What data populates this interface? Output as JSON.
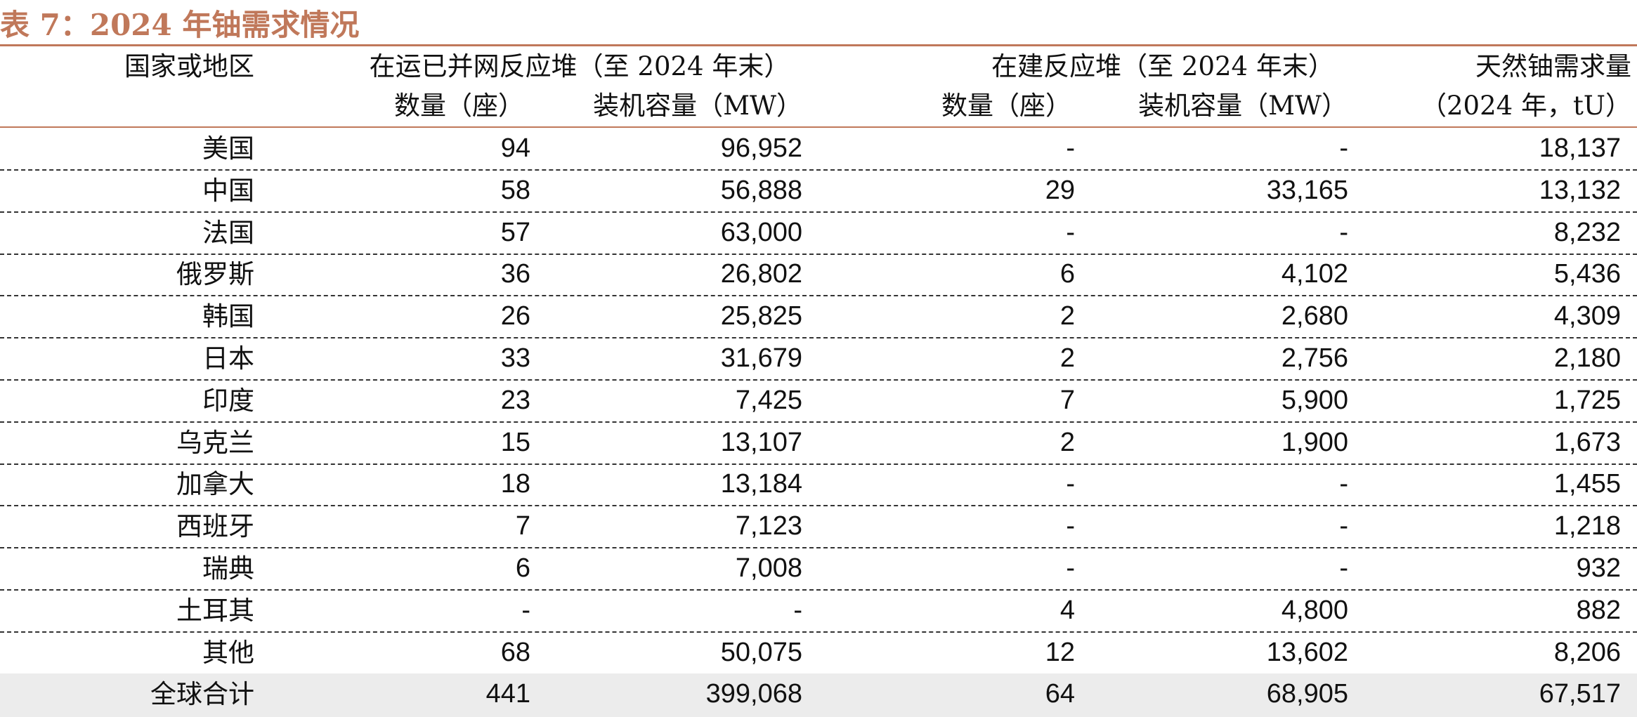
{
  "title": "表 7：2024 年铀需求情况",
  "header": {
    "country": "国家或地区",
    "operating_group": "在运已并网反应堆（至 2024 年末）",
    "construction_group": "在建反应堆（至 2024 年末）",
    "demand_line1": "天然铀需求量",
    "demand_line2": "（2024 年，tU）",
    "count_label": "数量（座）",
    "capacity_label": "装机容量（MW）"
  },
  "rows": [
    {
      "country": "美国",
      "op_count": "94",
      "op_cap": "96,952",
      "cn_count": "-",
      "cn_cap": "-",
      "demand": "18,137"
    },
    {
      "country": "中国",
      "op_count": "58",
      "op_cap": "56,888",
      "cn_count": "29",
      "cn_cap": "33,165",
      "demand": "13,132"
    },
    {
      "country": "法国",
      "op_count": "57",
      "op_cap": "63,000",
      "cn_count": "-",
      "cn_cap": "-",
      "demand": "8,232"
    },
    {
      "country": "俄罗斯",
      "op_count": "36",
      "op_cap": "26,802",
      "cn_count": "6",
      "cn_cap": "4,102",
      "demand": "5,436"
    },
    {
      "country": "韩国",
      "op_count": "26",
      "op_cap": "25,825",
      "cn_count": "2",
      "cn_cap": "2,680",
      "demand": "4,309"
    },
    {
      "country": "日本",
      "op_count": "33",
      "op_cap": "31,679",
      "cn_count": "2",
      "cn_cap": "2,756",
      "demand": "2,180"
    },
    {
      "country": "印度",
      "op_count": "23",
      "op_cap": "7,425",
      "cn_count": "7",
      "cn_cap": "5,900",
      "demand": "1,725"
    },
    {
      "country": "乌克兰",
      "op_count": "15",
      "op_cap": "13,107",
      "cn_count": "2",
      "cn_cap": "1,900",
      "demand": "1,673"
    },
    {
      "country": "加拿大",
      "op_count": "18",
      "op_cap": "13,184",
      "cn_count": "-",
      "cn_cap": "-",
      "demand": "1,455"
    },
    {
      "country": "西班牙",
      "op_count": "7",
      "op_cap": "7,123",
      "cn_count": "-",
      "cn_cap": "-",
      "demand": "1,218"
    },
    {
      "country": "瑞典",
      "op_count": "6",
      "op_cap": "7,008",
      "cn_count": "-",
      "cn_cap": "-",
      "demand": "932"
    },
    {
      "country": "土耳其",
      "op_count": "-",
      "op_cap": "-",
      "cn_count": "4",
      "cn_cap": "4,800",
      "demand": "882"
    },
    {
      "country": "其他",
      "op_count": "68",
      "op_cap": "50,075",
      "cn_count": "12",
      "cn_cap": "13,602",
      "demand": "8,206"
    },
    {
      "country": "全球合计",
      "op_count": "441",
      "op_cap": "399,068",
      "cn_count": "64",
      "cn_cap": "68,905",
      "demand": "67,517"
    }
  ]
}
